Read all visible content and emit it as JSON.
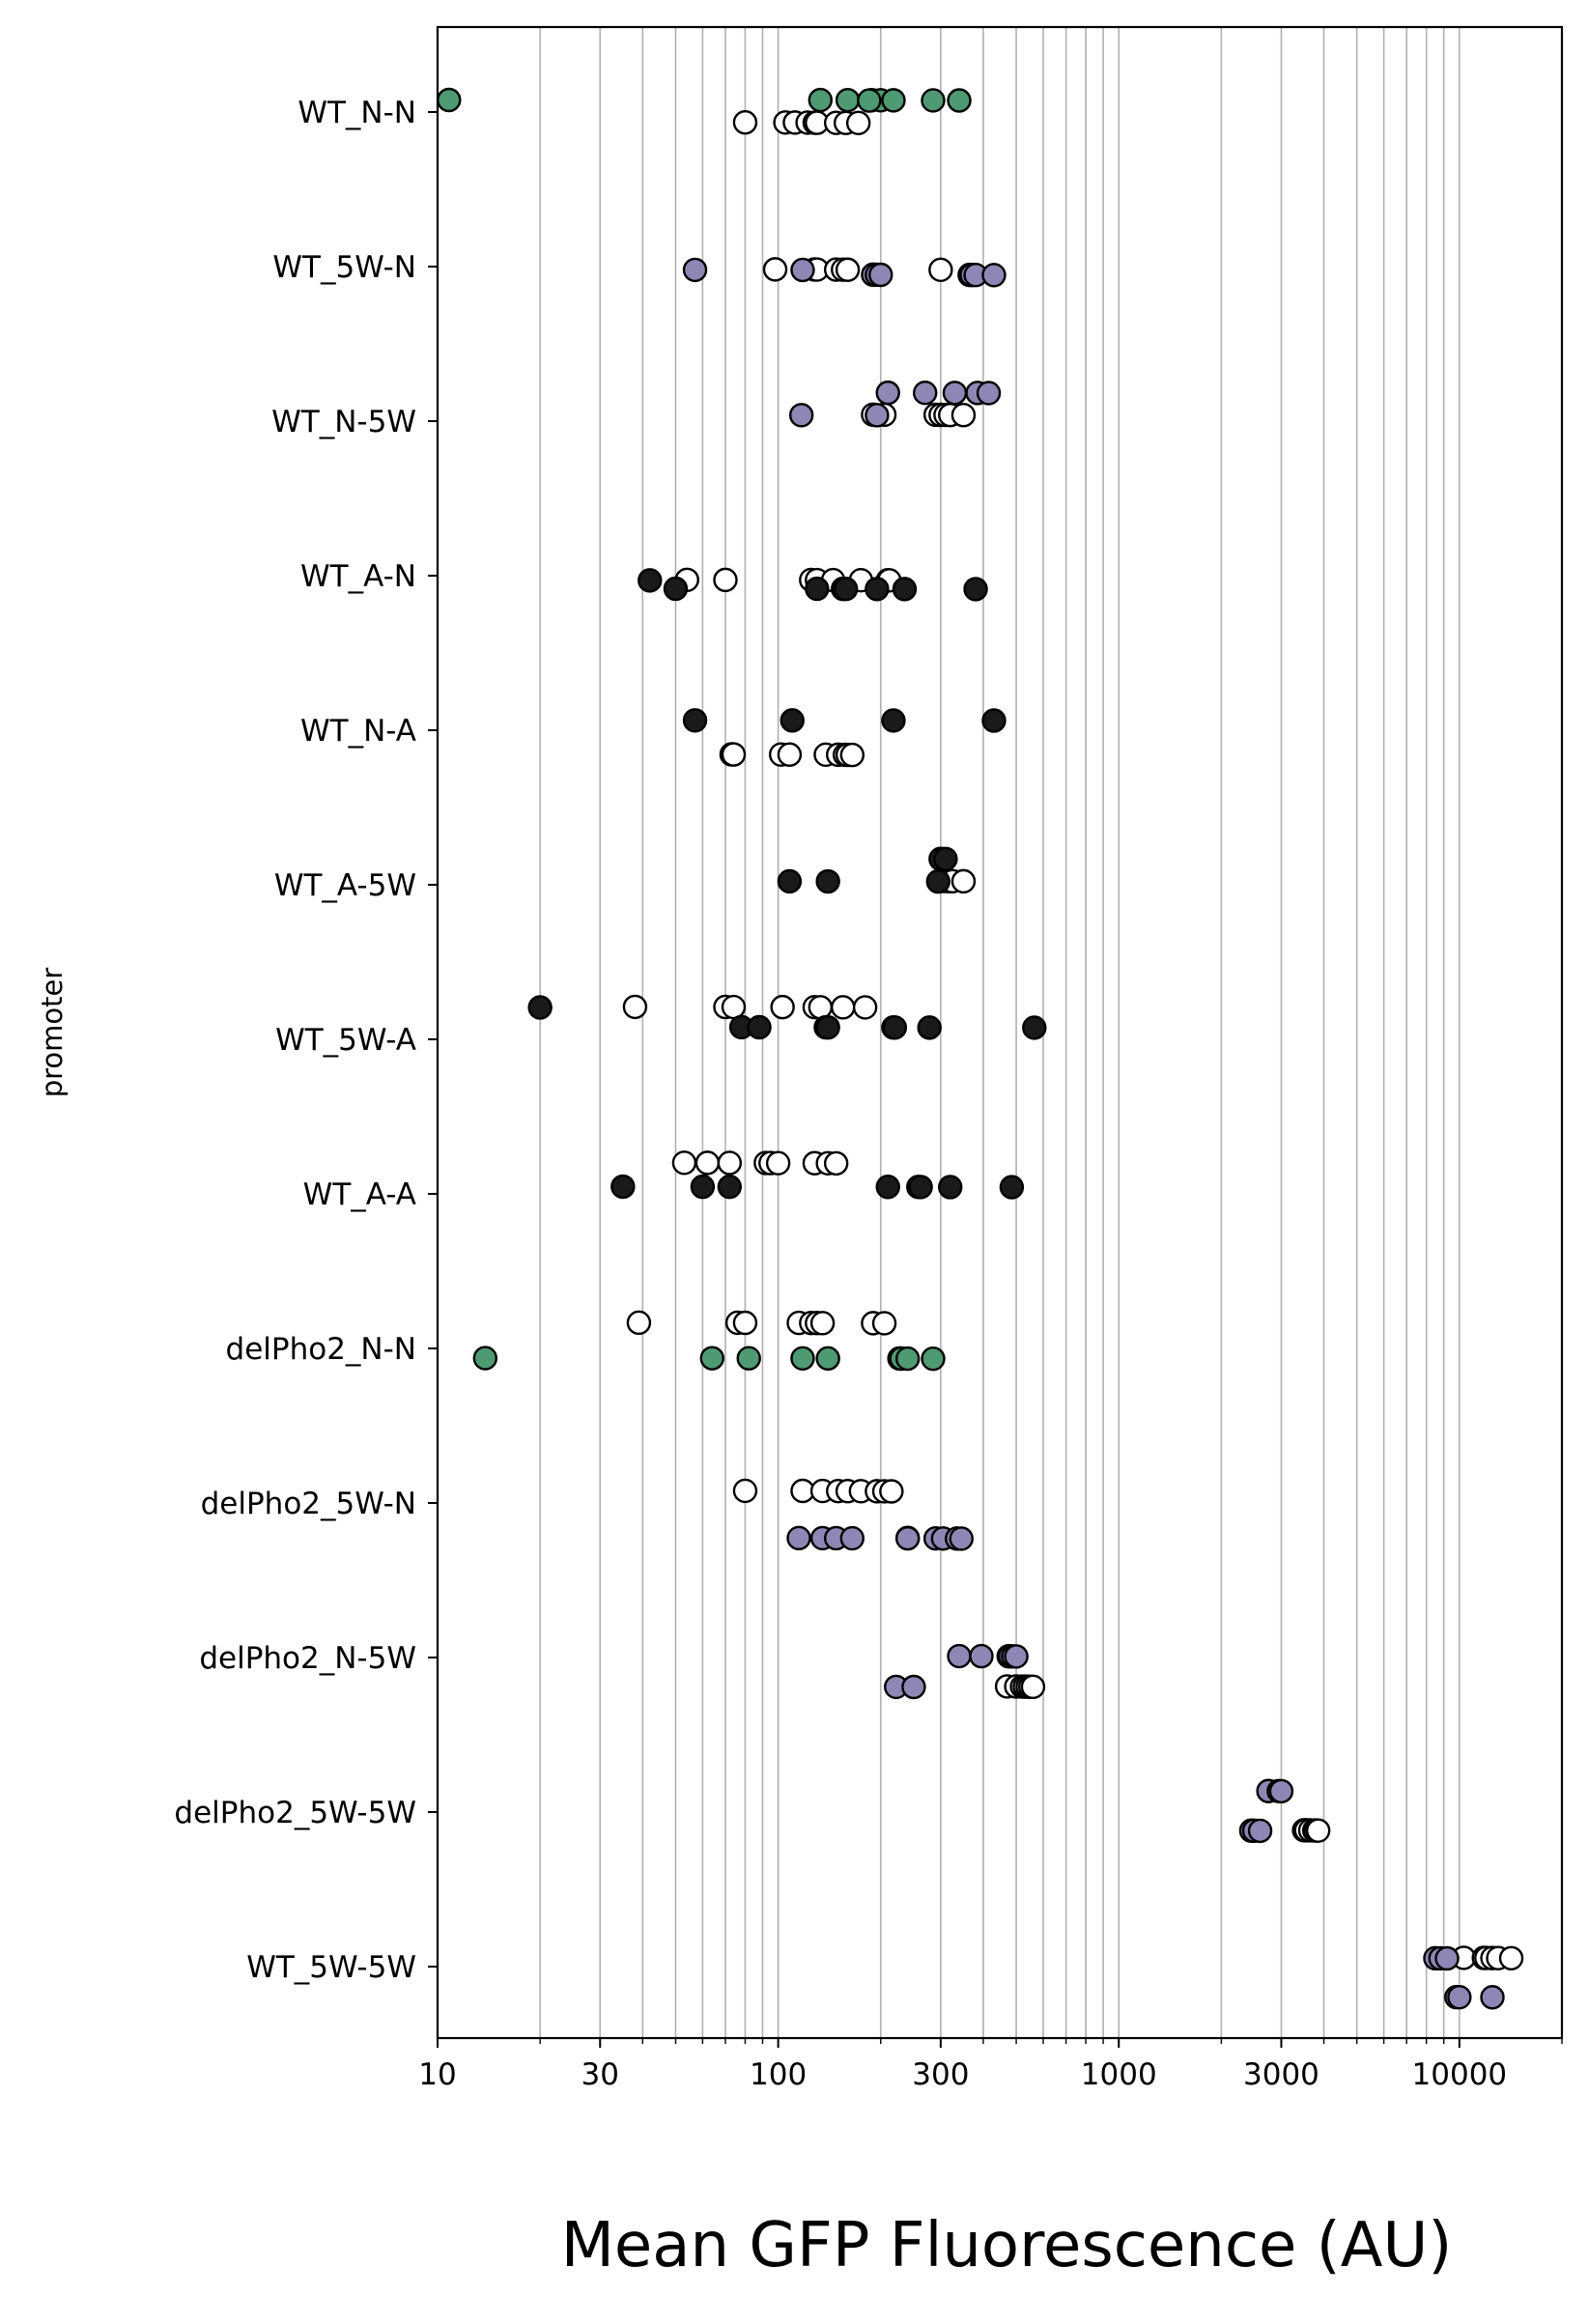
{
  "chart_data": {
    "type": "scatter",
    "xlabel": "Mean GFP Fluorescence (AU)",
    "ylabel": "promoter",
    "xscale": "log",
    "xlim": [
      10,
      20000
    ],
    "x_ticks": [
      10,
      30,
      100,
      300,
      1000,
      3000,
      10000
    ],
    "grid": "vertical",
    "colors": {
      "green": "#4e9a72",
      "purple": "#8e86b4",
      "black": "#1a1a1a",
      "white": "#ffffff",
      "edge": "#000000"
    },
    "categories": [
      "WT_N-N",
      "WT_5W-N",
      "WT_N-5W",
      "WT_A-N",
      "WT_N-A",
      "WT_A-5W",
      "WT_5W-A",
      "WT_A-A",
      "delPho2_N-N",
      "delPho2_5W-N",
      "delPho2_N-5W",
      "delPho2_5W-5W",
      "WT_5W-5W"
    ],
    "series": [
      {
        "color": "green",
        "points": [
          {
            "cat": "WT_N-N",
            "x": 10.8
          },
          {
            "cat": "WT_N-N",
            "x": 133
          },
          {
            "cat": "WT_N-N",
            "x": 160
          },
          {
            "cat": "WT_N-N",
            "x": 188
          },
          {
            "cat": "WT_N-N",
            "x": 200
          },
          {
            "cat": "WT_N-N",
            "x": 218
          },
          {
            "cat": "WT_N-N",
            "x": 285
          },
          {
            "cat": "WT_N-N",
            "x": 340
          },
          {
            "cat": "WT_N-N",
            "x": 185
          },
          {
            "cat": "delPho2_N-N",
            "x": 13.8
          },
          {
            "cat": "delPho2_N-N",
            "x": 64
          },
          {
            "cat": "delPho2_N-N",
            "x": 82
          },
          {
            "cat": "delPho2_N-N",
            "x": 118
          },
          {
            "cat": "delPho2_N-N",
            "x": 140
          },
          {
            "cat": "delPho2_N-N",
            "x": 227
          },
          {
            "cat": "delPho2_N-N",
            "x": 230
          },
          {
            "cat": "delPho2_N-N",
            "x": 240
          },
          {
            "cat": "delPho2_N-N",
            "x": 285
          }
        ]
      },
      {
        "color": "white",
        "points": [
          {
            "cat": "WT_N-N",
            "x": 80
          },
          {
            "cat": "WT_N-N",
            "x": 105
          },
          {
            "cat": "WT_N-N",
            "x": 112
          },
          {
            "cat": "WT_N-N",
            "x": 122
          },
          {
            "cat": "WT_N-N",
            "x": 128
          },
          {
            "cat": "WT_N-N",
            "x": 130
          },
          {
            "cat": "WT_N-N",
            "x": 148
          },
          {
            "cat": "WT_N-N",
            "x": 158
          },
          {
            "cat": "WT_N-N",
            "x": 172
          },
          {
            "cat": "WT_5W-N",
            "x": 98
          },
          {
            "cat": "WT_5W-N",
            "x": 128
          },
          {
            "cat": "WT_5W-N",
            "x": 130
          },
          {
            "cat": "WT_5W-N",
            "x": 148
          },
          {
            "cat": "WT_5W-N",
            "x": 155
          },
          {
            "cat": "WT_5W-N",
            "x": 160
          },
          {
            "cat": "WT_5W-N",
            "x": 300
          },
          {
            "cat": "WT_N-5W",
            "x": 190
          },
          {
            "cat": "WT_N-5W",
            "x": 205
          },
          {
            "cat": "WT_N-5W",
            "x": 290
          },
          {
            "cat": "WT_N-5W",
            "x": 300
          },
          {
            "cat": "WT_N-5W",
            "x": 310
          },
          {
            "cat": "WT_N-5W",
            "x": 320
          },
          {
            "cat": "WT_N-5W",
            "x": 350
          },
          {
            "cat": "WT_A-N",
            "x": 54
          },
          {
            "cat": "WT_A-N",
            "x": 70
          },
          {
            "cat": "WT_A-N",
            "x": 125
          },
          {
            "cat": "WT_A-N",
            "x": 130
          },
          {
            "cat": "WT_A-N",
            "x": 145
          },
          {
            "cat": "WT_A-N",
            "x": 175
          },
          {
            "cat": "WT_A-N",
            "x": 210
          },
          {
            "cat": "WT_A-N",
            "x": 212
          },
          {
            "cat": "WT_N-A",
            "x": 73
          },
          {
            "cat": "WT_N-A",
            "x": 74
          },
          {
            "cat": "WT_N-A",
            "x": 102
          },
          {
            "cat": "WT_N-A",
            "x": 108
          },
          {
            "cat": "WT_N-A",
            "x": 138
          },
          {
            "cat": "WT_N-A",
            "x": 150
          },
          {
            "cat": "WT_N-A",
            "x": 157
          },
          {
            "cat": "WT_N-A",
            "x": 160
          },
          {
            "cat": "WT_N-A",
            "x": 165
          },
          {
            "cat": "WT_A-5W",
            "x": 305
          },
          {
            "cat": "WT_A-5W",
            "x": 310
          },
          {
            "cat": "WT_A-5W",
            "x": 315
          },
          {
            "cat": "WT_A-5W",
            "x": 320
          },
          {
            "cat": "WT_A-5W",
            "x": 325
          },
          {
            "cat": "WT_A-5W",
            "x": 350
          },
          {
            "cat": "WT_5W-A",
            "x": 38
          },
          {
            "cat": "WT_5W-A",
            "x": 70
          },
          {
            "cat": "WT_5W-A",
            "x": 74
          },
          {
            "cat": "WT_5W-A",
            "x": 103
          },
          {
            "cat": "WT_5W-A",
            "x": 128
          },
          {
            "cat": "WT_5W-A",
            "x": 133
          },
          {
            "cat": "WT_5W-A",
            "x": 155
          },
          {
            "cat": "WT_5W-A",
            "x": 180
          },
          {
            "cat": "WT_A-A",
            "x": 53
          },
          {
            "cat": "WT_A-A",
            "x": 62
          },
          {
            "cat": "WT_A-A",
            "x": 72
          },
          {
            "cat": "WT_A-A",
            "x": 92
          },
          {
            "cat": "WT_A-A",
            "x": 95
          },
          {
            "cat": "WT_A-A",
            "x": 100
          },
          {
            "cat": "WT_A-A",
            "x": 128
          },
          {
            "cat": "WT_A-A",
            "x": 140
          },
          {
            "cat": "WT_A-A",
            "x": 148
          },
          {
            "cat": "delPho2_N-N",
            "x": 39
          },
          {
            "cat": "delPho2_N-N",
            "x": 76
          },
          {
            "cat": "delPho2_N-N",
            "x": 80
          },
          {
            "cat": "delPho2_N-N",
            "x": 115
          },
          {
            "cat": "delPho2_N-N",
            "x": 125
          },
          {
            "cat": "delPho2_N-N",
            "x": 130
          },
          {
            "cat": "delPho2_N-N",
            "x": 135
          },
          {
            "cat": "delPho2_N-N",
            "x": 190
          },
          {
            "cat": "delPho2_N-N",
            "x": 205
          },
          {
            "cat": "delPho2_5W-N",
            "x": 80
          },
          {
            "cat": "delPho2_5W-N",
            "x": 118
          },
          {
            "cat": "delPho2_5W-N",
            "x": 135
          },
          {
            "cat": "delPho2_5W-N",
            "x": 150
          },
          {
            "cat": "delPho2_5W-N",
            "x": 160
          },
          {
            "cat": "delPho2_5W-N",
            "x": 175
          },
          {
            "cat": "delPho2_5W-N",
            "x": 195
          },
          {
            "cat": "delPho2_5W-N",
            "x": 205
          },
          {
            "cat": "delPho2_5W-N",
            "x": 215
          },
          {
            "cat": "delPho2_5W-N",
            "x": 240
          },
          {
            "cat": "delPho2_N-5W",
            "x": 470
          },
          {
            "cat": "delPho2_N-5W",
            "x": 500
          },
          {
            "cat": "delPho2_N-5W",
            "x": 520
          },
          {
            "cat": "delPho2_N-5W",
            "x": 530
          },
          {
            "cat": "delPho2_N-5W",
            "x": 540
          },
          {
            "cat": "delPho2_N-5W",
            "x": 550
          },
          {
            "cat": "delPho2_N-5W",
            "x": 560
          },
          {
            "cat": "delPho2_5W-5W",
            "x": 3500
          },
          {
            "cat": "delPho2_5W-5W",
            "x": 3550
          },
          {
            "cat": "delPho2_5W-5W",
            "x": 3650
          },
          {
            "cat": "delPho2_5W-5W",
            "x": 3750
          },
          {
            "cat": "delPho2_5W-5W",
            "x": 3800
          },
          {
            "cat": "delPho2_5W-5W",
            "x": 3850
          },
          {
            "cat": "WT_5W-5W",
            "x": 10300
          },
          {
            "cat": "WT_5W-5W",
            "x": 11800
          },
          {
            "cat": "WT_5W-5W",
            "x": 12000
          },
          {
            "cat": "WT_5W-5W",
            "x": 12500
          },
          {
            "cat": "WT_5W-5W",
            "x": 13000
          },
          {
            "cat": "WT_5W-5W",
            "x": 14200
          }
        ]
      },
      {
        "color": "purple",
        "points": [
          {
            "cat": "WT_5W-N",
            "x": 57
          },
          {
            "cat": "WT_5W-N",
            "x": 118
          },
          {
            "cat": "WT_5W-N",
            "x": 190
          },
          {
            "cat": "WT_5W-N",
            "x": 195
          },
          {
            "cat": "WT_5W-N",
            "x": 200
          },
          {
            "cat": "WT_5W-N",
            "x": 365
          },
          {
            "cat": "WT_5W-N",
            "x": 370
          },
          {
            "cat": "WT_5W-N",
            "x": 380
          },
          {
            "cat": "WT_5W-N",
            "x": 430
          },
          {
            "cat": "WT_N-5W",
            "x": 117
          },
          {
            "cat": "WT_N-5W",
            "x": 195
          },
          {
            "cat": "WT_N-5W",
            "x": 210
          },
          {
            "cat": "WT_N-5W",
            "x": 270
          },
          {
            "cat": "WT_N-5W",
            "x": 330
          },
          {
            "cat": "WT_N-5W",
            "x": 385
          },
          {
            "cat": "WT_N-5W",
            "x": 415
          },
          {
            "cat": "delPho2_5W-N",
            "x": 115
          },
          {
            "cat": "delPho2_5W-N",
            "x": 135
          },
          {
            "cat": "delPho2_5W-N",
            "x": 148
          },
          {
            "cat": "delPho2_5W-N",
            "x": 165
          },
          {
            "cat": "delPho2_5W-N",
            "x": 240
          },
          {
            "cat": "delPho2_5W-N",
            "x": 290
          },
          {
            "cat": "delPho2_5W-N",
            "x": 305
          },
          {
            "cat": "delPho2_5W-N",
            "x": 335
          },
          {
            "cat": "delPho2_5W-N",
            "x": 345
          },
          {
            "cat": "delPho2_N-5W",
            "x": 222
          },
          {
            "cat": "delPho2_N-5W",
            "x": 250
          },
          {
            "cat": "delPho2_N-5W",
            "x": 340
          },
          {
            "cat": "delPho2_N-5W",
            "x": 395
          },
          {
            "cat": "delPho2_N-5W",
            "x": 475
          },
          {
            "cat": "delPho2_N-5W",
            "x": 480
          },
          {
            "cat": "delPho2_N-5W",
            "x": 490
          },
          {
            "cat": "delPho2_N-5W",
            "x": 500
          },
          {
            "cat": "delPho2_5W-5W",
            "x": 2450
          },
          {
            "cat": "delPho2_5W-5W",
            "x": 2500
          },
          {
            "cat": "delPho2_5W-5W",
            "x": 2600
          },
          {
            "cat": "delPho2_5W-5W",
            "x": 2750
          },
          {
            "cat": "delPho2_5W-5W",
            "x": 2950
          },
          {
            "cat": "delPho2_5W-5W",
            "x": 3000
          },
          {
            "cat": "WT_5W-5W",
            "x": 8500
          },
          {
            "cat": "WT_5W-5W",
            "x": 8800
          },
          {
            "cat": "WT_5W-5W",
            "x": 9200
          },
          {
            "cat": "WT_5W-5W",
            "x": 9800
          },
          {
            "cat": "WT_5W-5W",
            "x": 10000
          },
          {
            "cat": "WT_5W-5W",
            "x": 12500
          }
        ]
      },
      {
        "color": "black",
        "points": [
          {
            "cat": "WT_A-N",
            "x": 42
          },
          {
            "cat": "WT_A-N",
            "x": 50
          },
          {
            "cat": "WT_A-N",
            "x": 130
          },
          {
            "cat": "WT_A-N",
            "x": 155
          },
          {
            "cat": "WT_A-N",
            "x": 158
          },
          {
            "cat": "WT_A-N",
            "x": 195
          },
          {
            "cat": "WT_A-N",
            "x": 235
          },
          {
            "cat": "WT_A-N",
            "x": 380
          },
          {
            "cat": "WT_N-A",
            "x": 57
          },
          {
            "cat": "WT_N-A",
            "x": 110
          },
          {
            "cat": "WT_N-A",
            "x": 218
          },
          {
            "cat": "WT_N-A",
            "x": 430
          },
          {
            "cat": "WT_A-5W",
            "x": 108
          },
          {
            "cat": "WT_A-5W",
            "x": 140
          },
          {
            "cat": "WT_A-5W",
            "x": 295
          },
          {
            "cat": "WT_A-5W",
            "x": 300
          },
          {
            "cat": "WT_A-5W",
            "x": 310
          },
          {
            "cat": "WT_5W-A",
            "x": 20
          },
          {
            "cat": "WT_5W-A",
            "x": 78
          },
          {
            "cat": "WT_5W-A",
            "x": 88
          },
          {
            "cat": "WT_5W-A",
            "x": 138
          },
          {
            "cat": "WT_5W-A",
            "x": 140
          },
          {
            "cat": "WT_5W-A",
            "x": 218
          },
          {
            "cat": "WT_5W-A",
            "x": 220
          },
          {
            "cat": "WT_5W-A",
            "x": 278
          },
          {
            "cat": "WT_5W-A",
            "x": 565
          },
          {
            "cat": "WT_A-A",
            "x": 35
          },
          {
            "cat": "WT_A-A",
            "x": 60
          },
          {
            "cat": "WT_A-A",
            "x": 72
          },
          {
            "cat": "WT_A-A",
            "x": 210
          },
          {
            "cat": "WT_A-A",
            "x": 258
          },
          {
            "cat": "WT_A-A",
            "x": 262
          },
          {
            "cat": "WT_A-A",
            "x": 320
          },
          {
            "cat": "WT_A-A",
            "x": 485
          }
        ]
      }
    ]
  }
}
